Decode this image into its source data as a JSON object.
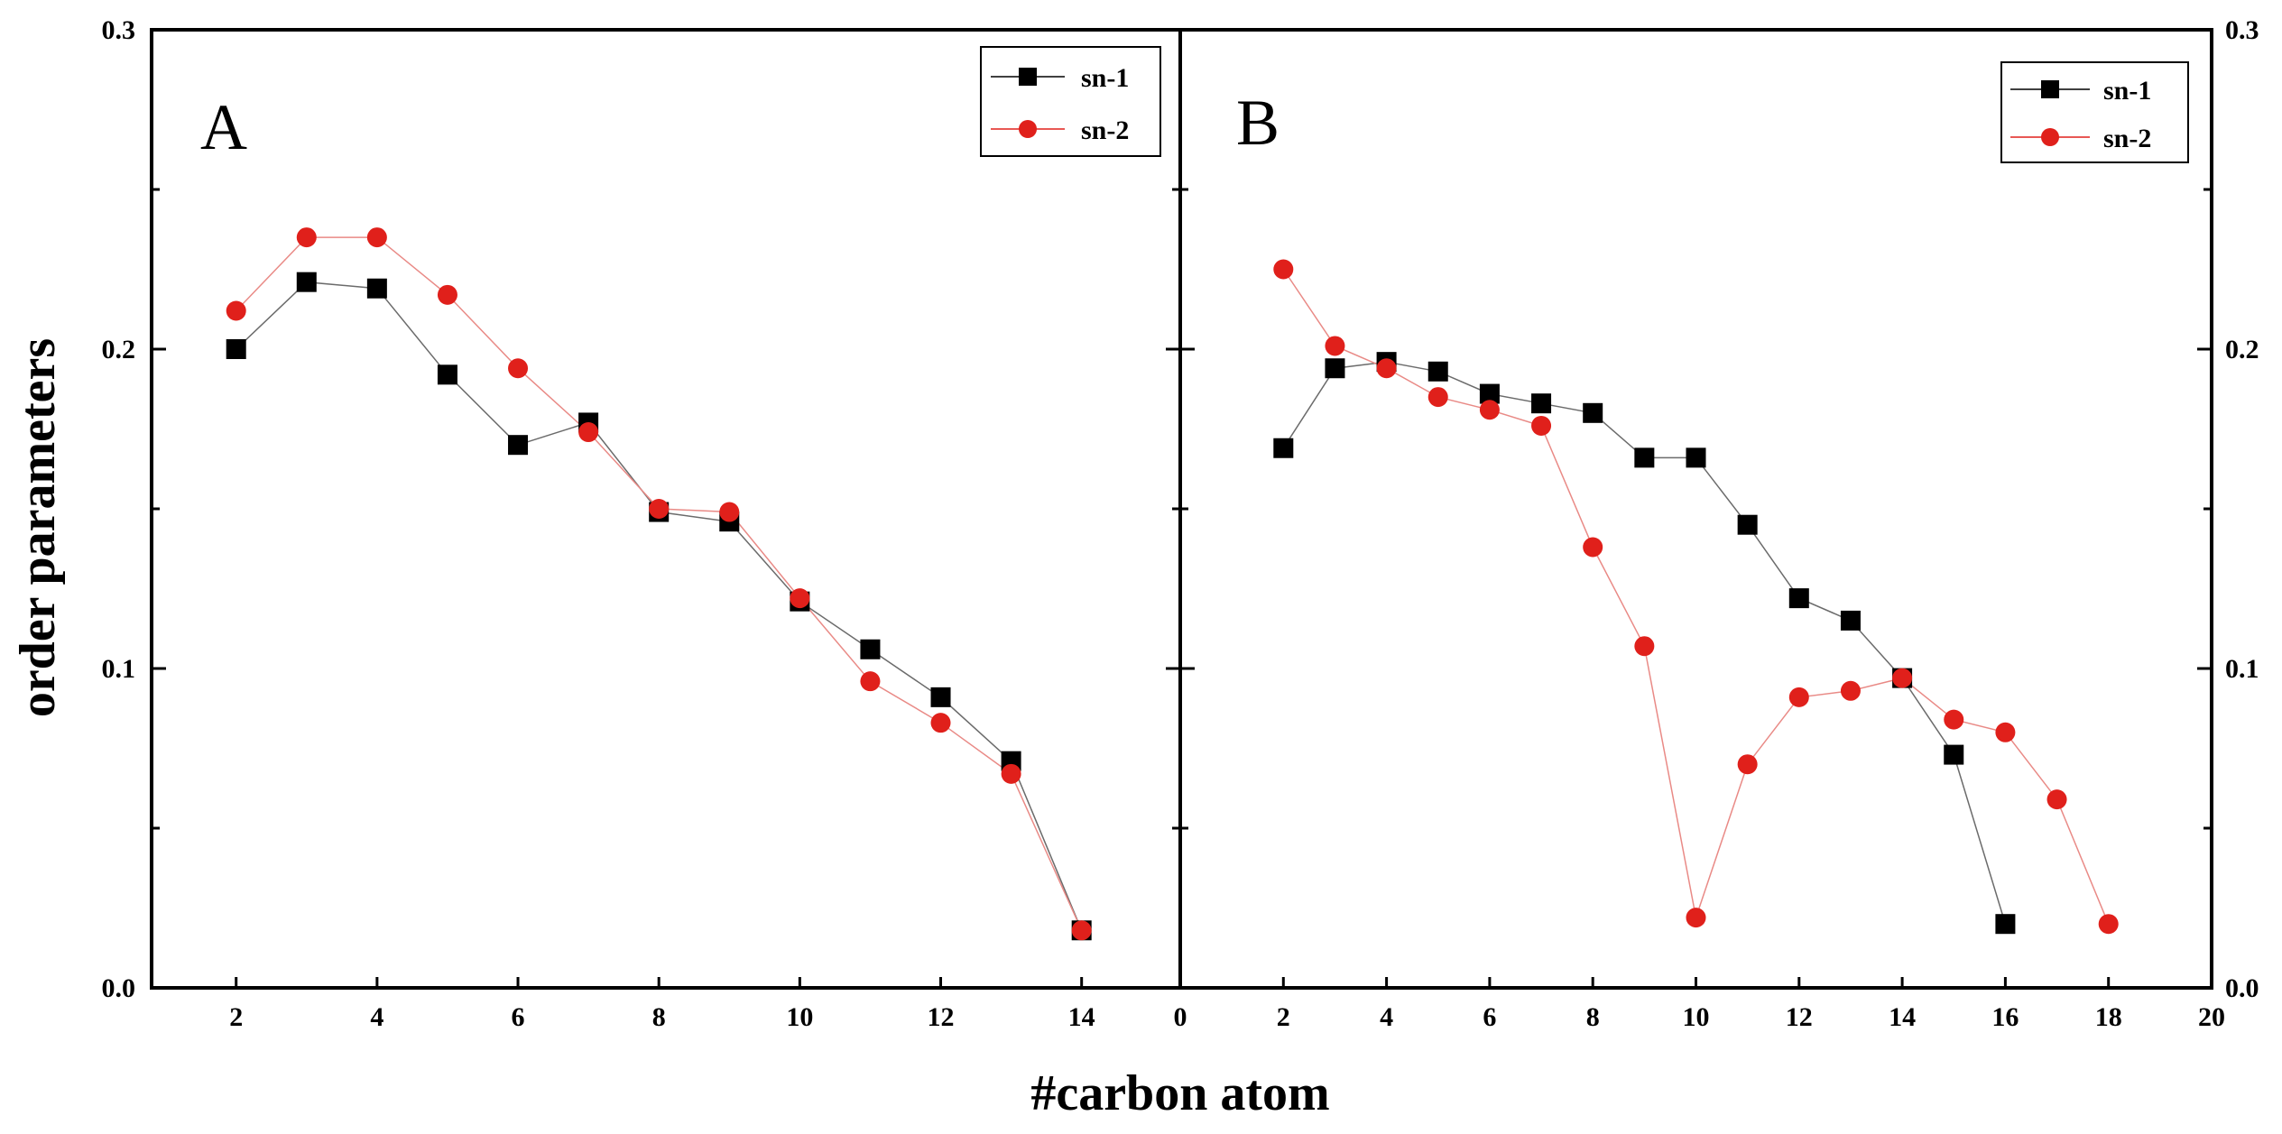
{
  "chart_data": {
    "type": "scatter",
    "ylabel": "order parameters",
    "xlabel": "#carbon atom",
    "ylim": [
      0.0,
      0.3
    ],
    "y_ticks": [
      "0.0",
      "0.1",
      "0.2",
      "0.3"
    ],
    "panels": [
      {
        "label": "A",
        "xlim": [
          0.8,
          15.4
        ],
        "x_ticks": [
          "2",
          "4",
          "6",
          "8",
          "10",
          "12",
          "14"
        ],
        "x_tick_values": [
          2,
          4,
          6,
          8,
          10,
          12,
          14
        ],
        "legend_position": "top-right",
        "series": [
          {
            "name": "sn-1",
            "marker": "square",
            "color": "#000000",
            "x": [
              2,
              3,
              4,
              5,
              6,
              7,
              8,
              9,
              10,
              11,
              12,
              13,
              14
            ],
            "y": [
              0.2,
              0.221,
              0.219,
              0.192,
              0.17,
              0.177,
              0.149,
              0.146,
              0.121,
              0.106,
              0.091,
              0.071,
              0.018
            ]
          },
          {
            "name": "sn-2",
            "marker": "circle",
            "color": "#e0201b",
            "x": [
              2,
              3,
              4,
              5,
              6,
              7,
              8,
              9,
              10,
              11,
              12,
              13,
              14
            ],
            "y": [
              0.212,
              0.235,
              0.235,
              0.217,
              0.194,
              0.174,
              0.15,
              0.149,
              0.122,
              0.096,
              0.083,
              0.067,
              0.018
            ]
          }
        ]
      },
      {
        "label": "B",
        "xlim": [
          0,
          20
        ],
        "x_ticks": [
          "0",
          "2",
          "4",
          "6",
          "8",
          "10",
          "12",
          "14",
          "16",
          "18",
          "20"
        ],
        "x_tick_values": [
          0,
          2,
          4,
          6,
          8,
          10,
          12,
          14,
          16,
          18,
          20
        ],
        "legend_position": "top-right",
        "series": [
          {
            "name": "sn-1",
            "marker": "square",
            "color": "#000000",
            "x": [
              2,
              3,
              4,
              5,
              6,
              7,
              8,
              9,
              10,
              11,
              12,
              13,
              14,
              15,
              16
            ],
            "y": [
              0.169,
              0.194,
              0.196,
              0.193,
              0.186,
              0.183,
              0.18,
              0.166,
              0.166,
              0.145,
              0.122,
              0.115,
              0.097,
              0.073,
              0.02
            ]
          },
          {
            "name": "sn-2",
            "marker": "circle",
            "color": "#e0201b",
            "x": [
              2,
              3,
              4,
              5,
              6,
              7,
              8,
              9,
              10,
              11,
              12,
              13,
              14,
              15,
              16,
              17,
              18
            ],
            "y": [
              0.225,
              0.201,
              0.194,
              0.185,
              0.181,
              0.176,
              0.138,
              0.107,
              0.022,
              0.07,
              0.091,
              0.093,
              0.097,
              0.084,
              0.08,
              0.059,
              0.02
            ]
          }
        ]
      }
    ]
  }
}
